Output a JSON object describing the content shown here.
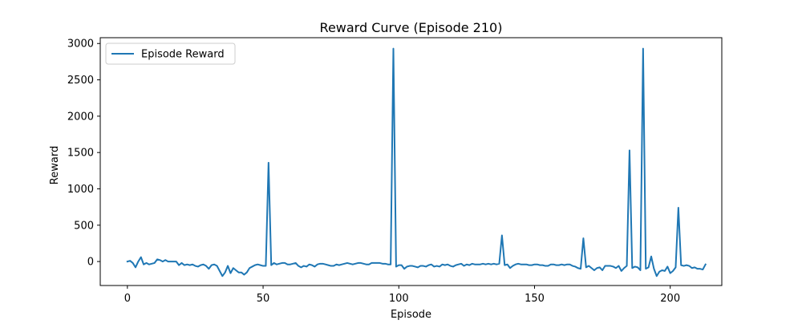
{
  "chart_data": {
    "type": "line",
    "title": "Reward Curve (Episode 210)",
    "xlabel": "Episode",
    "ylabel": "Reward",
    "xlim": [
      -10,
      219
    ],
    "ylim": [
      -330,
      3080
    ],
    "xticks": [
      0,
      50,
      100,
      150,
      200
    ],
    "yticks": [
      0,
      500,
      1000,
      1500,
      2000,
      2500,
      3000
    ],
    "legend_position": "top-left",
    "grid": false,
    "series": [
      {
        "name": "Episode Reward",
        "color": "#1f77b4",
        "y": [
          0,
          10,
          -20,
          -80,
          0,
          60,
          -40,
          -20,
          -40,
          -30,
          -20,
          30,
          20,
          0,
          20,
          0,
          0,
          0,
          0,
          -50,
          -20,
          -50,
          -40,
          -50,
          -40,
          -60,
          -70,
          -50,
          -40,
          -60,
          -100,
          -50,
          -40,
          -60,
          -130,
          -200,
          -150,
          -60,
          -160,
          -90,
          -120,
          -150,
          -150,
          -180,
          -150,
          -90,
          -70,
          -50,
          -40,
          -50,
          -60,
          -60,
          1360,
          -50,
          -20,
          -40,
          -30,
          -20,
          -20,
          -40,
          -40,
          -30,
          -20,
          -60,
          -80,
          -60,
          -70,
          -40,
          -50,
          -70,
          -40,
          -30,
          -30,
          -40,
          -50,
          -60,
          -60,
          -40,
          -50,
          -40,
          -30,
          -20,
          -30,
          -40,
          -30,
          -20,
          -20,
          -30,
          -40,
          -40,
          -20,
          -20,
          -20,
          -20,
          -30,
          -30,
          -40,
          -40,
          2930,
          -70,
          -50,
          -50,
          -100,
          -70,
          -60,
          -60,
          -70,
          -80,
          -60,
          -60,
          -70,
          -50,
          -40,
          -70,
          -60,
          -70,
          -40,
          -50,
          -40,
          -60,
          -70,
          -50,
          -40,
          -30,
          -60,
          -40,
          -50,
          -30,
          -40,
          -40,
          -40,
          -30,
          -40,
          -30,
          -40,
          -30,
          -40,
          -30,
          360,
          -50,
          -40,
          -90,
          -60,
          -40,
          -30,
          -40,
          -40,
          -40,
          -50,
          -50,
          -40,
          -40,
          -50,
          -50,
          -60,
          -60,
          -40,
          -40,
          -50,
          -50,
          -40,
          -50,
          -40,
          -40,
          -60,
          -70,
          -90,
          -100,
          320,
          -80,
          -60,
          -90,
          -120,
          -90,
          -80,
          -120,
          -60,
          -60,
          -60,
          -70,
          -90,
          -60,
          -130,
          -90,
          -60,
          1530,
          -90,
          -70,
          -80,
          -120,
          2930,
          -100,
          -80,
          70,
          -100,
          -200,
          -140,
          -120,
          -130,
          -70,
          -160,
          -130,
          -80,
          740,
          -50,
          -60,
          -50,
          -60,
          -90,
          -80,
          -100,
          -100,
          -110,
          -40
        ]
      }
    ]
  }
}
